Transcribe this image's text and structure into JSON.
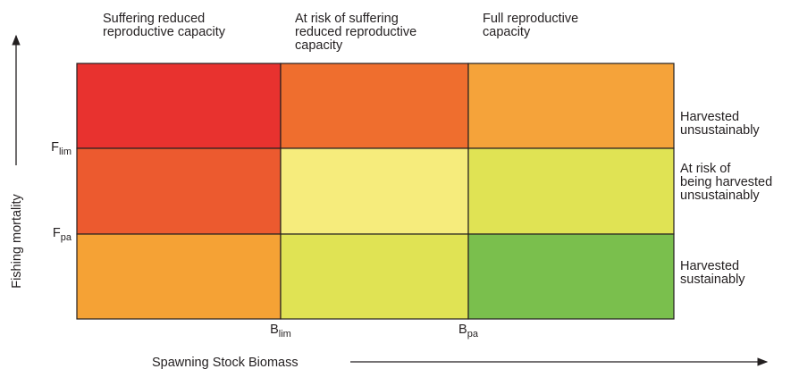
{
  "column_headers": [
    [
      "Suffering reduced",
      "reproductive capacity"
    ],
    [
      "At risk of suffering",
      "reduced reproductive",
      "capacity"
    ],
    [
      "Full reproductive",
      "capacity"
    ]
  ],
  "row_labels": [
    [
      "Harvested",
      "unsustainably"
    ],
    [
      "At risk of",
      "being harvested",
      "unsustainably"
    ],
    [
      "Harvested",
      "sustainably"
    ]
  ],
  "cell_colors": [
    [
      "#e8322f",
      "#ef6e2e",
      "#f5a33a"
    ],
    [
      "#ec5a2f",
      "#f6ec7c",
      "#e0e354"
    ],
    [
      "#f5a235",
      "#e0e354",
      "#7abf4d"
    ]
  ],
  "y_thresholds": [
    {
      "main": "F",
      "sub": "lim"
    },
    {
      "main": "F",
      "sub": "pa"
    }
  ],
  "x_thresholds": [
    {
      "main": "B",
      "sub": "lim"
    },
    {
      "main": "B",
      "sub": "pa"
    }
  ],
  "y_axis_label": "Fishing mortality",
  "x_axis_label": "Spawning Stock Biomass"
}
